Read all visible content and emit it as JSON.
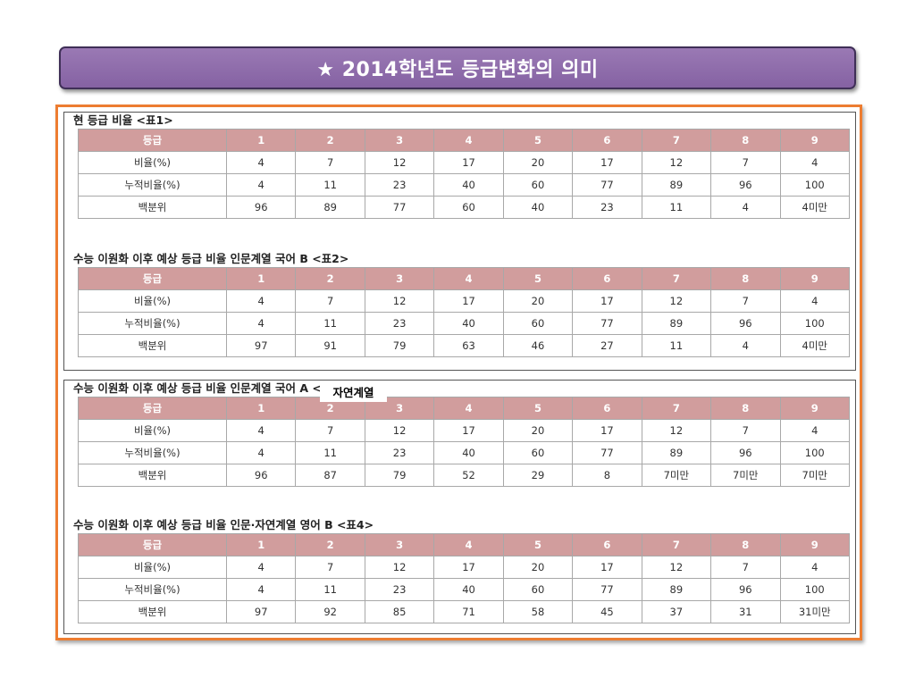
{
  "title": "★ 2014학년도 등급변화의 의미",
  "tables": [
    {
      "heading": "현 등급 비율 <표1>",
      "header": [
        "등급",
        "1",
        "2",
        "3",
        "4",
        "5",
        "6",
        "7",
        "8",
        "9"
      ],
      "rows": [
        [
          "비율(%)",
          "4",
          "7",
          "12",
          "17",
          "20",
          "17",
          "12",
          "7",
          "4"
        ],
        [
          "누적비율(%)",
          "4",
          "11",
          "23",
          "40",
          "60",
          "77",
          "89",
          "96",
          "100"
        ],
        [
          "백분위",
          "96",
          "89",
          "77",
          "60",
          "40",
          "23",
          "11",
          "4",
          "4미만"
        ]
      ]
    },
    {
      "heading": "수능 이원화 이후 예상 등급 비율 인문계열 국어 B <표2>",
      "header": [
        "등급",
        "1",
        "2",
        "3",
        "4",
        "5",
        "6",
        "7",
        "8",
        "9"
      ],
      "rows": [
        [
          "비율(%)",
          "4",
          "7",
          "12",
          "17",
          "20",
          "17",
          "12",
          "7",
          "4"
        ],
        [
          "누적비율(%)",
          "4",
          "11",
          "23",
          "40",
          "60",
          "77",
          "89",
          "96",
          "100"
        ],
        [
          "백분위",
          "97",
          "91",
          "79",
          "63",
          "46",
          "27",
          "11",
          "4",
          "4미만"
        ]
      ]
    },
    {
      "heading": "수능 이원화 이후 예상 등급 비율 인문계열 국어 A <표3>",
      "overlay_label": "자연계열",
      "header": [
        "등급",
        "1",
        "2",
        "3",
        "4",
        "5",
        "6",
        "7",
        "8",
        "9"
      ],
      "rows": [
        [
          "비율(%)",
          "4",
          "7",
          "12",
          "17",
          "20",
          "17",
          "12",
          "7",
          "4"
        ],
        [
          "누적비율(%)",
          "4",
          "11",
          "23",
          "40",
          "60",
          "77",
          "89",
          "96",
          "100"
        ],
        [
          "백분위",
          "96",
          "87",
          "79",
          "52",
          "29",
          "8",
          "7미만",
          "7미만",
          "7미만"
        ]
      ]
    },
    {
      "heading": "수능 이원화 이후 예상 등급 비율 인문·자연계열 영어 B <표4>",
      "header": [
        "등급",
        "1",
        "2",
        "3",
        "4",
        "5",
        "6",
        "7",
        "8",
        "9"
      ],
      "rows": [
        [
          "비율(%)",
          "4",
          "7",
          "12",
          "17",
          "20",
          "17",
          "12",
          "7",
          "4"
        ],
        [
          "누적비율(%)",
          "4",
          "11",
          "23",
          "40",
          "60",
          "77",
          "89",
          "96",
          "100"
        ],
        [
          "백분위",
          "97",
          "92",
          "85",
          "71",
          "58",
          "45",
          "37",
          "31",
          "31미만"
        ]
      ]
    }
  ]
}
